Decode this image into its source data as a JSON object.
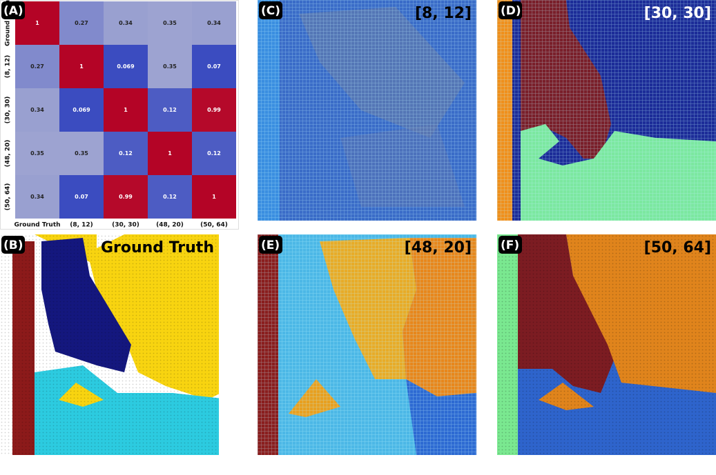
{
  "chart_data": {
    "type": "heatmap",
    "panel_label": "(A)",
    "categories": [
      "Ground Truth",
      "(8, 12)",
      "(30, 30)",
      "(48, 20)",
      "(50, 64)"
    ],
    "values": [
      [
        1,
        0.27,
        0.34,
        0.35,
        0.34
      ],
      [
        0.27,
        1,
        0.069,
        0.35,
        0.07
      ],
      [
        0.34,
        0.069,
        1,
        0.12,
        0.99
      ],
      [
        0.35,
        0.35,
        0.12,
        1,
        0.12
      ],
      [
        0.34,
        0.07,
        0.99,
        0.12,
        1
      ]
    ]
  },
  "panels": [
    {
      "tag": "(B)",
      "title": "Ground Truth"
    },
    {
      "tag": "(C)",
      "title": "[8, 12]"
    },
    {
      "tag": "(D)",
      "title": "[30, 30]"
    },
    {
      "tag": "(E)",
      "title": "[48, 20]"
    },
    {
      "tag": "(F)",
      "title": "[50, 64]"
    }
  ]
}
